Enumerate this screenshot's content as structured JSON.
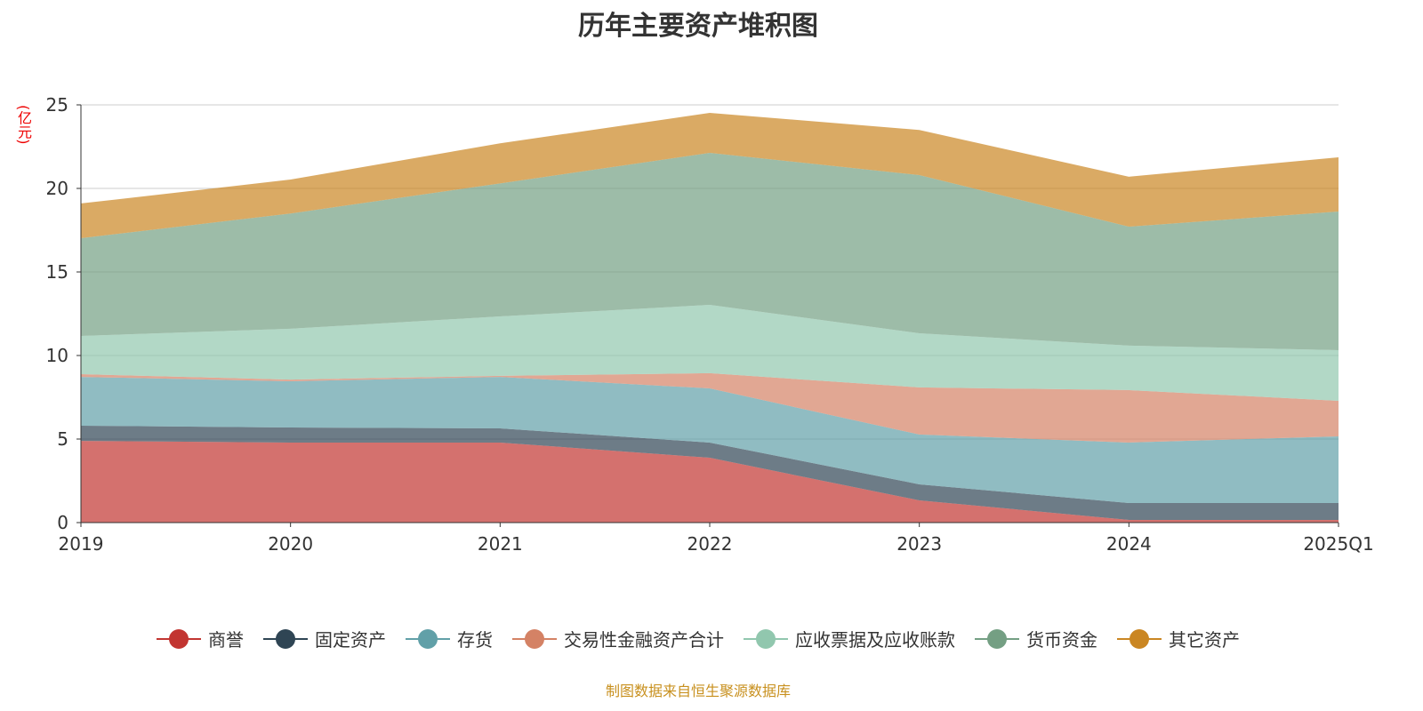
{
  "chart_data": {
    "type": "area",
    "stacked": true,
    "title": "历年主要资产堆积图",
    "ylabel": "(亿元)",
    "xlabel": "",
    "ylim": [
      0,
      25
    ],
    "yticks": [
      0,
      5,
      10,
      15,
      20,
      25
    ],
    "grid": true,
    "legend_position": "bottom",
    "categories": [
      "2019",
      "2020",
      "2021",
      "2022",
      "2023",
      "2024",
      "2025Q1"
    ],
    "series": [
      {
        "name": "商誉",
        "color": "#c23531",
        "values": [
          4.89,
          4.79,
          4.79,
          3.88,
          1.33,
          0.16,
          0.16
        ]
      },
      {
        "name": "固定资产",
        "color": "#2f4554",
        "values": [
          0.91,
          0.9,
          0.85,
          0.91,
          0.96,
          1.01,
          1.01
        ]
      },
      {
        "name": "存货",
        "color": "#61a0a8",
        "values": [
          2.92,
          2.77,
          3.08,
          3.24,
          2.98,
          3.62,
          3.99
        ]
      },
      {
        "name": "交易性金融资产合计",
        "color": "#d48265",
        "values": [
          0.16,
          0.1,
          0.06,
          0.91,
          2.82,
          3.14,
          2.13
        ]
      },
      {
        "name": "应收票据及应收账款",
        "color": "#91c7ae",
        "values": [
          2.29,
          3.04,
          3.56,
          4.09,
          3.24,
          2.66,
          3.03
        ]
      },
      {
        "name": "货币资金",
        "color": "#749f83",
        "values": [
          5.85,
          6.9,
          7.96,
          9.1,
          9.47,
          7.12,
          8.3
        ]
      },
      {
        "name": "其它资产",
        "color": "#ca8622",
        "values": [
          2.08,
          2.03,
          2.4,
          2.39,
          2.7,
          2.99,
          3.24
        ]
      }
    ]
  },
  "source": "制图数据来自恒生聚源数据库"
}
